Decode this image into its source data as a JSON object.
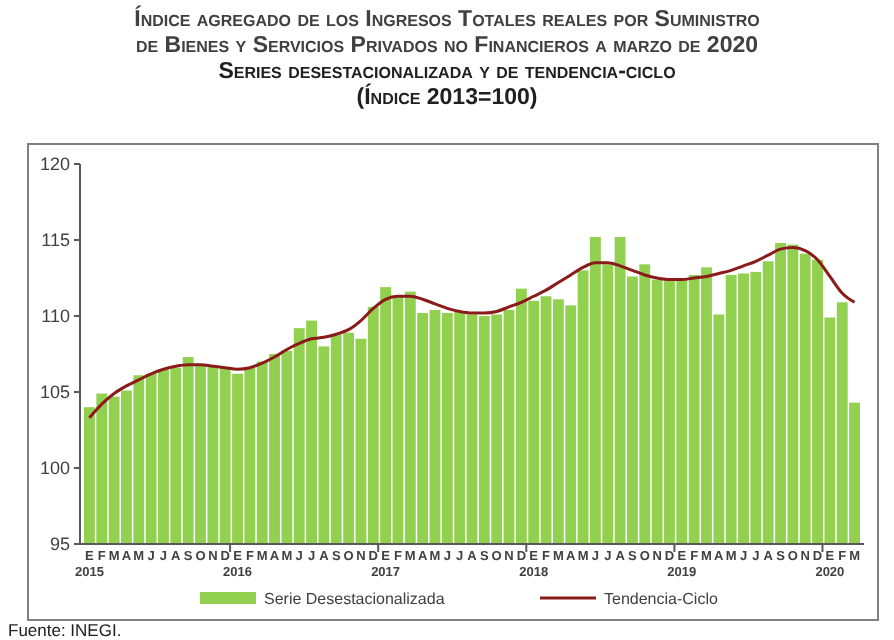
{
  "chart_data": {
    "type": "bar",
    "title": "Índice agregado de los Ingresos Totales reales por Suministro\nde Bienes y Servicios Privados no Financieros a marzo de 2020",
    "subtitle": "Series desestacionalizada y de tendencia-ciclo\n(Índice 2013=100)",
    "categories": [
      "E 2015",
      "F",
      "M",
      "A",
      "M",
      "J",
      "J",
      "A",
      "S",
      "O",
      "N",
      "D",
      "E 2016",
      "F",
      "M",
      "A",
      "M",
      "J",
      "J",
      "A",
      "S",
      "O",
      "N",
      "D",
      "E 2017",
      "F",
      "M",
      "A",
      "M",
      "J",
      "J",
      "A",
      "S",
      "O",
      "N",
      "D",
      "E 2018",
      "F",
      "M",
      "A",
      "M",
      "J",
      "J",
      "A",
      "S",
      "O",
      "N",
      "D",
      "E 2019",
      "F",
      "M",
      "A",
      "M",
      "J",
      "J",
      "A",
      "S",
      "O",
      "N",
      "D",
      "E 2020",
      "F",
      "M"
    ],
    "series": [
      {
        "name": "Serie Desestacionalizada",
        "color": "#92d050",
        "values": [
          104.0,
          104.9,
          104.7,
          105.1,
          106.1,
          106.2,
          106.5,
          106.6,
          107.3,
          106.8,
          106.7,
          106.6,
          106.2,
          106.6,
          107.0,
          107.5,
          107.7,
          109.2,
          109.7,
          108.0,
          108.8,
          108.9,
          108.5,
          110.6,
          111.9,
          111.3,
          111.6,
          110.2,
          110.4,
          110.2,
          110.3,
          110.1,
          110.0,
          110.1,
          110.4,
          111.8,
          111.0,
          111.3,
          111.1,
          110.7,
          113.0,
          115.2,
          113.4,
          115.2,
          112.6,
          113.4,
          112.4,
          112.3,
          112.4,
          112.7,
          113.2,
          110.1,
          112.7,
          112.8,
          112.9,
          113.6,
          114.8,
          114.7,
          114.1,
          113.7,
          109.9,
          110.9,
          104.3
        ]
      },
      {
        "name": "Tendencia-Ciclo",
        "type": "line",
        "color": "#8b1a1a",
        "values": [
          103.3,
          104.2,
          104.9,
          105.4,
          105.8,
          106.2,
          106.5,
          106.7,
          106.8,
          106.8,
          106.7,
          106.6,
          106.5,
          106.6,
          106.9,
          107.3,
          107.8,
          108.2,
          108.5,
          108.6,
          108.8,
          109.1,
          109.7,
          110.5,
          111.1,
          111.3,
          111.3,
          111.1,
          110.8,
          110.5,
          110.3,
          110.2,
          110.2,
          110.3,
          110.6,
          110.9,
          111.3,
          111.7,
          112.2,
          112.7,
          113.2,
          113.5,
          113.5,
          113.3,
          113.0,
          112.7,
          112.5,
          112.4,
          112.4,
          112.5,
          112.6,
          112.8,
          113.0,
          113.3,
          113.6,
          114.0,
          114.4,
          114.5,
          114.3,
          113.7,
          112.6,
          111.5,
          110.9
        ]
      }
    ],
    "ylim": [
      95,
      120
    ],
    "yticks": [
      95,
      100,
      105,
      110,
      115,
      120
    ],
    "grid": false,
    "legend": "bottom",
    "annotations": [
      "Fuente: INEGI."
    ]
  }
}
